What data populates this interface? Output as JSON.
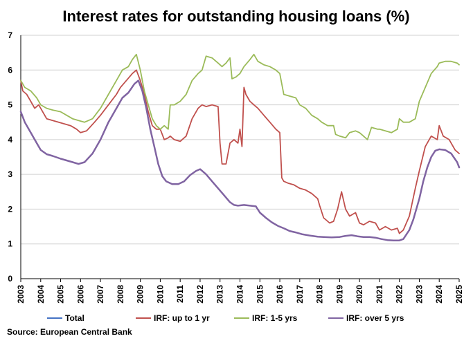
{
  "chart_data": {
    "type": "line",
    "title": "Interest rates for outstanding housing loans (%)",
    "xlabel": "",
    "ylabel": "",
    "xlim": [
      2003,
      2025
    ],
    "ylim": [
      0,
      7
    ],
    "x_ticks": [
      "2003",
      "2004",
      "2005",
      "2006",
      "2007",
      "2008",
      "2009",
      "2010",
      "2011",
      "2012",
      "2013",
      "2014",
      "2015",
      "2016",
      "2017",
      "2018",
      "2019",
      "2020",
      "2021",
      "2022",
      "2023",
      "2024",
      "2025"
    ],
    "y_ticks": [
      0,
      1,
      2,
      3,
      4,
      5,
      6,
      7
    ],
    "grid": true,
    "legend_position": "bottom",
    "source": "Source: European Central Bank",
    "series": [
      {
        "name": "Total",
        "color": "#4472C4",
        "x": [],
        "y": []
      },
      {
        "name": "IRF: up to 1 yr",
        "color": "#C0504D",
        "x": [
          2003.0,
          2003.1,
          2003.3,
          2003.5,
          2003.7,
          2003.9,
          2004.1,
          2004.3,
          2004.6,
          2004.9,
          2005.2,
          2005.5,
          2005.8,
          2006.0,
          2006.3,
          2006.7,
          2007.0,
          2007.4,
          2007.8,
          2008.0,
          2008.3,
          2008.6,
          2008.8,
          2009.0,
          2009.2,
          2009.4,
          2009.6,
          2009.8,
          2010.0,
          2010.2,
          2010.4,
          2010.5,
          2010.7,
          2011.0,
          2011.3,
          2011.6,
          2011.9,
          2012.1,
          2012.3,
          2012.6,
          2012.9,
          2013.0,
          2013.1,
          2013.3,
          2013.5,
          2013.7,
          2013.9,
          2014.0,
          2014.1,
          2014.2,
          2014.3,
          2014.5,
          2014.7,
          2014.9,
          2015.2,
          2015.5,
          2015.8,
          2016.0,
          2016.1,
          2016.2,
          2016.4,
          2016.7,
          2017.0,
          2017.3,
          2017.6,
          2017.9,
          2018.0,
          2018.2,
          2018.5,
          2018.7,
          2018.9,
          2019.1,
          2019.3,
          2019.5,
          2019.8,
          2020.0,
          2020.2,
          2020.5,
          2020.8,
          2021.0,
          2021.3,
          2021.6,
          2021.9,
          2022.0,
          2022.2,
          2022.5,
          2022.8,
          2023.0,
          2023.3,
          2023.6,
          2023.9,
          2024.0,
          2024.2,
          2024.5,
          2024.8,
          2025.0
        ],
        "y": [
          5.7,
          5.4,
          5.3,
          5.1,
          4.9,
          5.0,
          4.8,
          4.6,
          4.55,
          4.5,
          4.45,
          4.4,
          4.3,
          4.2,
          4.25,
          4.5,
          4.7,
          5.0,
          5.3,
          5.5,
          5.7,
          5.9,
          6.0,
          5.7,
          5.3,
          4.8,
          4.4,
          4.3,
          4.3,
          4.0,
          4.05,
          4.1,
          4.0,
          3.95,
          4.1,
          4.6,
          4.9,
          5.0,
          4.95,
          5.0,
          4.95,
          3.9,
          3.3,
          3.3,
          3.9,
          4.0,
          3.9,
          4.3,
          3.8,
          5.5,
          5.3,
          5.1,
          5.0,
          4.9,
          4.7,
          4.5,
          4.3,
          4.2,
          2.9,
          2.8,
          2.75,
          2.7,
          2.6,
          2.55,
          2.45,
          2.3,
          2.1,
          1.75,
          1.6,
          1.65,
          2.0,
          2.5,
          2.0,
          1.8,
          1.9,
          1.6,
          1.55,
          1.65,
          1.6,
          1.4,
          1.5,
          1.4,
          1.45,
          1.3,
          1.4,
          1.8,
          2.6,
          3.1,
          3.8,
          4.1,
          4.0,
          4.4,
          4.1,
          4.0,
          3.7,
          3.6
        ]
      },
      {
        "name": "IRF: 1-5 yrs",
        "color": "#9BBB59",
        "x": [
          2003.0,
          2003.2,
          2003.5,
          2003.8,
          2004.0,
          2004.3,
          2004.6,
          2005.0,
          2005.3,
          2005.6,
          2005.9,
          2006.2,
          2006.6,
          2007.0,
          2007.4,
          2007.8,
          2008.1,
          2008.4,
          2008.6,
          2008.8,
          2009.0,
          2009.2,
          2009.4,
          2009.6,
          2009.8,
          2010.0,
          2010.2,
          2010.4,
          2010.5,
          2010.7,
          2011.0,
          2011.3,
          2011.6,
          2011.9,
          2012.1,
          2012.3,
          2012.6,
          2012.9,
          2013.1,
          2013.3,
          2013.5,
          2013.6,
          2013.8,
          2014.0,
          2014.2,
          2014.5,
          2014.7,
          2014.9,
          2015.2,
          2015.5,
          2015.8,
          2016.0,
          2016.2,
          2016.5,
          2016.8,
          2017.0,
          2017.3,
          2017.6,
          2017.9,
          2018.1,
          2018.4,
          2018.7,
          2018.8,
          2019.0,
          2019.3,
          2019.5,
          2019.8,
          2020.0,
          2020.2,
          2020.4,
          2020.6,
          2020.9,
          2021.0,
          2021.3,
          2021.6,
          2021.9,
          2022.0,
          2022.2,
          2022.5,
          2022.8,
          2023.0,
          2023.3,
          2023.6,
          2023.9,
          2024.0,
          2024.3,
          2024.6,
          2024.9,
          2025.0
        ],
        "y": [
          5.7,
          5.5,
          5.4,
          5.2,
          5.0,
          4.9,
          4.85,
          4.8,
          4.7,
          4.6,
          4.55,
          4.5,
          4.6,
          4.9,
          5.3,
          5.7,
          6.0,
          6.1,
          6.3,
          6.45,
          6.0,
          5.4,
          5.0,
          4.6,
          4.4,
          4.3,
          4.4,
          4.3,
          5.0,
          5.0,
          5.1,
          5.3,
          5.7,
          5.9,
          6.0,
          6.4,
          6.35,
          6.2,
          6.1,
          6.2,
          6.35,
          5.75,
          5.8,
          5.9,
          6.1,
          6.3,
          6.45,
          6.25,
          6.15,
          6.1,
          6.0,
          5.9,
          5.3,
          5.25,
          5.2,
          5.0,
          4.9,
          4.7,
          4.6,
          4.5,
          4.4,
          4.4,
          4.15,
          4.1,
          4.05,
          4.2,
          4.25,
          4.2,
          4.1,
          4.0,
          4.35,
          4.3,
          4.3,
          4.25,
          4.2,
          4.3,
          4.6,
          4.5,
          4.5,
          4.6,
          5.1,
          5.5,
          5.9,
          6.1,
          6.2,
          6.25,
          6.25,
          6.2,
          6.15
        ]
      },
      {
        "name": "IRF: over 5 yrs",
        "color": "#8064A2",
        "x": [
          2003.0,
          2003.2,
          2003.5,
          2003.8,
          2004.0,
          2004.3,
          2004.6,
          2005.0,
          2005.3,
          2005.6,
          2005.9,
          2006.2,
          2006.6,
          2007.0,
          2007.4,
          2007.8,
          2008.1,
          2008.4,
          2008.7,
          2008.9,
          2009.1,
          2009.3,
          2009.5,
          2009.7,
          2009.9,
          2010.1,
          2010.3,
          2010.6,
          2010.9,
          2011.2,
          2011.5,
          2011.8,
          2012.0,
          2012.3,
          2012.6,
          2012.9,
          2013.2,
          2013.5,
          2013.7,
          2013.9,
          2014.2,
          2014.5,
          2014.8,
          2015.0,
          2015.3,
          2015.6,
          2015.9,
          2016.2,
          2016.5,
          2016.8,
          2017.1,
          2017.5,
          2017.9,
          2018.2,
          2018.6,
          2019.0,
          2019.3,
          2019.6,
          2019.9,
          2020.2,
          2020.5,
          2020.8,
          2021.1,
          2021.4,
          2021.7,
          2022.0,
          2022.2,
          2022.5,
          2022.7,
          2023.0,
          2023.2,
          2023.4,
          2023.6,
          2023.8,
          2024.0,
          2024.3,
          2024.6,
          2024.9,
          2025.0
        ],
        "y": [
          4.8,
          4.5,
          4.2,
          3.9,
          3.7,
          3.58,
          3.53,
          3.45,
          3.4,
          3.35,
          3.3,
          3.35,
          3.6,
          4.0,
          4.5,
          4.9,
          5.2,
          5.35,
          5.6,
          5.7,
          5.4,
          4.9,
          4.3,
          3.8,
          3.3,
          2.95,
          2.8,
          2.72,
          2.72,
          2.8,
          2.98,
          3.1,
          3.15,
          3.0,
          2.8,
          2.6,
          2.4,
          2.2,
          2.12,
          2.1,
          2.12,
          2.1,
          2.08,
          1.9,
          1.75,
          1.62,
          1.52,
          1.45,
          1.37,
          1.33,
          1.28,
          1.24,
          1.21,
          1.2,
          1.19,
          1.2,
          1.23,
          1.25,
          1.22,
          1.2,
          1.2,
          1.18,
          1.14,
          1.11,
          1.1,
          1.1,
          1.14,
          1.4,
          1.7,
          2.3,
          2.8,
          3.2,
          3.5,
          3.68,
          3.72,
          3.7,
          3.6,
          3.35,
          3.2
        ]
      }
    ]
  }
}
